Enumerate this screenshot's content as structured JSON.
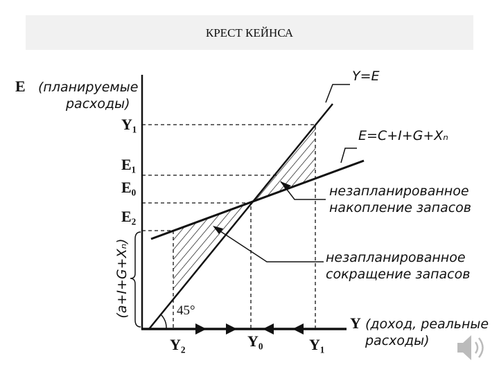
{
  "header": {
    "title": "КРЕСТ КЕЙНСА"
  },
  "axes": {
    "y_label": [
      "E",
      "(планируемые",
      "расходы)"
    ],
    "x_label": [
      "Y",
      "(доход, реальные",
      "расходы)"
    ],
    "bracket_label": "(a+I+G+Xₙ)",
    "angle": "45°"
  },
  "y_marks": {
    "y1": "Y₁",
    "e1": "E₁",
    "e0": "E₀",
    "e2": "E₂"
  },
  "x_marks": {
    "y2": "Y₂",
    "y0": "Y₀",
    "y1": "Y₁"
  },
  "lines": {
    "diagonal": "Y=E",
    "expenditure": "E=C+I+G+Xₙ"
  },
  "annotations": {
    "accumulation": [
      "незапланированное",
      "накопление запасов"
    ],
    "reduction": [
      "незапланированное",
      "сокращение запасов"
    ]
  }
}
